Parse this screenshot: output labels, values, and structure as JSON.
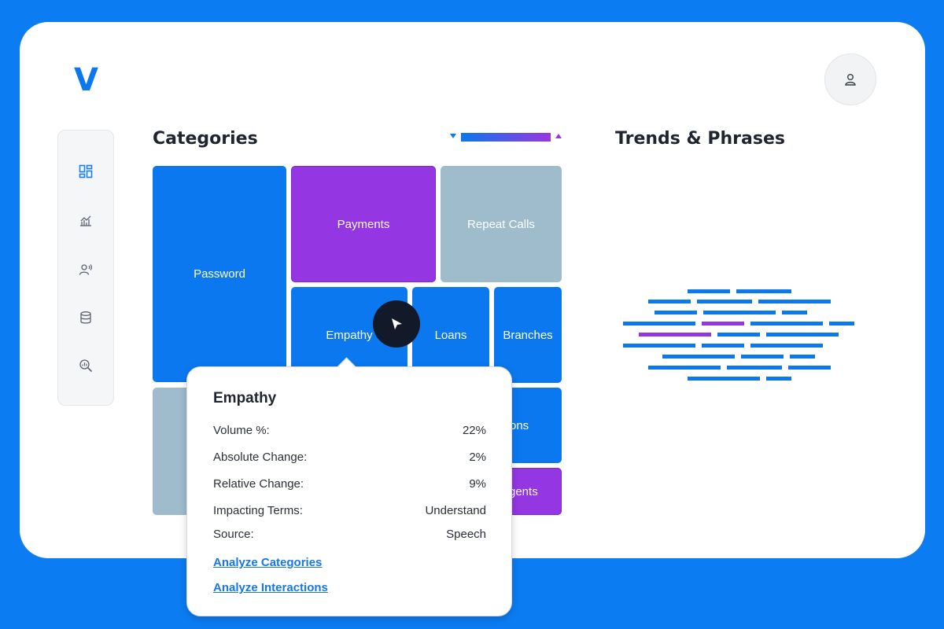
{
  "brand": {
    "logo_text": "V",
    "accent": "#0b78ee"
  },
  "header": {
    "avatar_icon": "user-icon"
  },
  "sidebar": {
    "items": [
      {
        "name": "dashboard-icon"
      },
      {
        "name": "analytics-chart-icon"
      },
      {
        "name": "speaker-user-icon"
      },
      {
        "name": "database-icon"
      },
      {
        "name": "search-analytics-icon"
      }
    ]
  },
  "categories": {
    "title": "Categories",
    "scale_colors": [
      "#0b78ee",
      "#9a36e0"
    ],
    "tiles": [
      {
        "label": "Password",
        "color": "blue"
      },
      {
        "label": "Payments",
        "color": "purple"
      },
      {
        "label": "Repeat Calls",
        "color": "gray"
      },
      {
        "label": "Empathy",
        "color": "blue"
      },
      {
        "label": "Loans",
        "color": "blue"
      },
      {
        "label": "Branches",
        "color": "blue"
      },
      {
        "label": "",
        "color": "gray"
      },
      {
        "label": "ons",
        "color": "blue"
      },
      {
        "label": "gents",
        "color": "purple"
      }
    ]
  },
  "trends": {
    "title": "Trends & Phrases"
  },
  "tooltip": {
    "title": "Empathy",
    "rows": [
      {
        "label": "Volume %:",
        "value": "22%"
      },
      {
        "label": "Absolute Change:",
        "value": "2%"
      },
      {
        "label": "Relative Change:",
        "value": "9%"
      },
      {
        "label": "Impacting Terms:",
        "value": "Understand"
      },
      {
        "label": "Source:",
        "value": "Speech"
      }
    ],
    "links": [
      {
        "label": "Analyze Categories"
      },
      {
        "label": "Analyze Interactions"
      }
    ]
  }
}
